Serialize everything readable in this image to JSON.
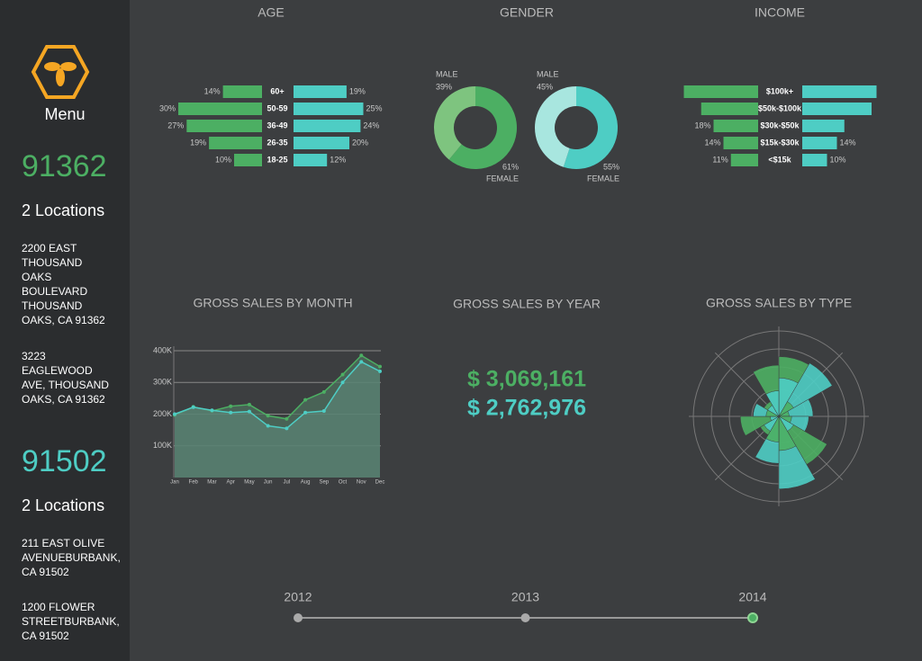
{
  "sidebar": {
    "menu": "Menu",
    "zips": [
      {
        "zip": "91362",
        "count": "2 Locations",
        "color": "#4caf63",
        "addresses": [
          "2200 EAST THOUSAND OAKS BOULEVARD THOUSAND OAKS, CA 91362",
          "3223 EAGLEWOOD AVE, THOUSAND OAKS, CA 91362"
        ]
      },
      {
        "zip": "91502",
        "count": "2 Locations",
        "color": "#4ecdc4",
        "addresses": [
          "211 EAST OLIVE AVENUEBURBANK, CA 91502",
          "1200 FLOWER STREETBURBANK, CA 91502"
        ]
      }
    ]
  },
  "chart_data": [
    {
      "type": "butterfly",
      "title": "AGE",
      "categories": [
        "60+",
        "50-59",
        "36-49",
        "26-35",
        "18-25"
      ],
      "series": [
        {
          "color": "#4caf63",
          "values": [
            14,
            30,
            27,
            19,
            10
          ],
          "value_labels": [
            "14%",
            "30%",
            "27%",
            "19%",
            "10%"
          ]
        },
        {
          "color": "#4ecdc4",
          "values": [
            19,
            25,
            24,
            20,
            12
          ],
          "value_labels": [
            "19%",
            "25%",
            "24%",
            "20%",
            "12%"
          ]
        }
      ]
    },
    {
      "type": "pie",
      "title": "GENDER",
      "categories": [
        "MALE",
        "FEMALE"
      ],
      "values": [
        39,
        61
      ],
      "value_labels": [
        "39%",
        "61%"
      ],
      "colors": [
        "#7ec47f",
        "#4caf63"
      ]
    },
    {
      "type": "pie",
      "categories": [
        "MALE",
        "FEMALE"
      ],
      "values": [
        45,
        55
      ],
      "value_labels": [
        "45%",
        "55%"
      ],
      "colors": [
        "#a8e6df",
        "#4ecdc4"
      ]
    },
    {
      "type": "butterfly",
      "title": "INCOME",
      "categories": [
        "$100k+",
        "$50k-$100k",
        "$30k-$50k",
        "$15k-$30k",
        "<$15k"
      ],
      "series": [
        {
          "color": "#4caf63",
          "values": [
            30,
            23,
            18,
            14,
            11
          ],
          "value_labels": [
            null,
            null,
            "18%",
            "14%",
            "11%"
          ]
        },
        {
          "color": "#4ecdc4",
          "values": [
            30,
            28,
            17,
            14,
            10
          ],
          "value_labels": [
            null,
            null,
            null,
            "14%",
            "10%"
          ]
        }
      ]
    },
    {
      "type": "area",
      "title": "GROSS SALES BY MONTH",
      "categories": [
        "Jan",
        "Feb",
        "Mar",
        "Apr",
        "May",
        "Jun",
        "Jul",
        "Aug",
        "Sep",
        "Oct",
        "Nov",
        "Dec"
      ],
      "series": [
        {
          "color": "#4caf63",
          "values": [
            197000,
            223000,
            210000,
            225000,
            230000,
            195000,
            185000,
            245000,
            270000,
            325000,
            385000,
            350000
          ]
        },
        {
          "color": "#4ecdc4",
          "values": [
            200000,
            222000,
            212000,
            205000,
            208000,
            163000,
            155000,
            205000,
            210000,
            300000,
            365000,
            335000
          ]
        }
      ],
      "ylim": [
        0,
        400000
      ],
      "yticks": [
        {
          "value": 100000,
          "label": "100K"
        },
        {
          "value": 200000,
          "label": "200K"
        },
        {
          "value": 300000,
          "label": "300K"
        },
        {
          "value": 400000,
          "label": "400K"
        }
      ],
      "grid": true
    },
    {
      "type": "rose",
      "title": "GROSS SALES BY TYPE",
      "rlim": [
        0,
        100
      ],
      "series": [
        {
          "color": "#4caf63",
          "values": [
            70,
            20,
            12,
            15,
            65,
            40,
            30,
            25,
            45,
            15,
            20,
            60
          ]
        },
        {
          "color": "#4ecdc4",
          "values": [
            45,
            72,
            40,
            35,
            20,
            85,
            55,
            20,
            10,
            30,
            15,
            30
          ]
        }
      ]
    }
  ],
  "sales_by_year": {
    "title": "GROSS SALES BY YEAR",
    "values": [
      "$ 3,069,161",
      "$ 2,762,976"
    ],
    "colors": [
      "#4caf63",
      "#4ecdc4"
    ]
  },
  "timeline": {
    "years": [
      "2012",
      "2013",
      "2014"
    ],
    "selected": 2
  }
}
